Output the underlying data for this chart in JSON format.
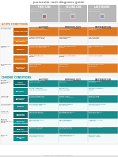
{
  "page_bg": "#f0f0f0",
  "title": "periocular rash diagnosis guide",
  "title_color": "#444444",
  "header_gray": "#b8b8b8",
  "header_labels": [
    "FIRST LINE",
    "SECOND LINE",
    "LAST RESORT"
  ],
  "acute_orange": "#e07820",
  "acute_orange_dark": "#c06010",
  "acute_orange_light": "#f0f0f0",
  "acute_label": "ACUTE CONDITIONS",
  "chronic_teal": "#1a8c8c",
  "chronic_teal_dark": "#0f6b6b",
  "chronic_teal_light": "#e8f4f4",
  "chronic_label": "CHRONIC CONDITIONS",
  "col_headers": [
    "HISTORY",
    "MORPHOLOGY",
    "DISTRIBUTION"
  ],
  "col_header_color": "#555555",
  "left_col_color": "#555555",
  "white": "#ffffff",
  "acute_rows": [
    {
      "cat": "Systemic rash\nor symptoms",
      "label": "Drug reaction",
      "orange": true,
      "h_text": "Sudden onset, diffuse\nerythema, drug exposure",
      "m_text": "Morbilliform eruption\nwith petechiae",
      "d_text": "Diffuse/widespread,\nspares face"
    },
    {
      "cat": "",
      "label": "Contact allergen\nalternative",
      "orange": false,
      "h_text": "Allergen contact hours\nbefore onset, no drug",
      "m_text": "Papules tracking\nconstellation",
      "d_text": "Site of contact,\neyelid margins"
    },
    {
      "cat": "Presence of\nredentity",
      "label": "Psoriasis",
      "orange": true,
      "h_text": "Chronic, waxing and waning\naffects other body sites",
      "m_text": "Scaly, well-demarcated\nplaques",
      "d_text": "Knees, elbows, scalp,\nnails"
    },
    {
      "cat": "",
      "label": "Eczematous",
      "orange": false,
      "h_text": "Atopic background,\npruritus",
      "m_text": "Lichenified, excoriated\nplaques",
      "d_text": "Flexural, periorbital"
    },
    {
      "cat": "Systematically\nresult",
      "label": "Periorbital\ncellulitis",
      "orange": true,
      "h_text": "Fever, unilateral,\nrapid onset",
      "m_text": "Warm, tender,\nerythematous",
      "d_text": "Unilateral periorbital,\nnon-proptotic"
    }
  ],
  "chronic_rows": [
    {
      "cat": "Reduced\npersistence or\nrecurrence\nhistory",
      "label": "Allergic\nconjunctivitis",
      "teal": true,
      "h_text": "Seasonal or perennial,\nsneezing, nasal",
      "m_text": "Chemosis, papillae,\nhyperemia",
      "d_text": "Bilateral, palpebral\nconjunctiva"
    },
    {
      "cat": "",
      "label": "Blepharitis",
      "teal": false,
      "h_text": "Can be triggered by\nchange in soap/shampoo",
      "m_text": "Erythematous\neyelid margins",
      "d_text": "Bilateral, lid margins,\ncanthus"
    },
    {
      "cat": "Teary eyes\nor tearing",
      "label": "Seborrhoeic\nblepharitis",
      "teal": true,
      "h_text": "Dandruff, seborrhoeic\ndermatitis elsewhere",
      "m_text": "Greasy scales,\ncollettes, madarosis",
      "d_text": "Lash line, brow,\nnasolabial fold"
    },
    {
      "cat": "Itchy periorbital\nor perinasal",
      "label": "Rosacea",
      "teal": false,
      "h_text": "Flushing, sun sensitivity,\nrhinophyma, acne",
      "m_text": "Erythema, papules,\ntelangiectasia",
      "d_text": "Cheeks, nose, forehead,\nchin, periorbital"
    },
    {
      "cat": "History of\nsteroid use",
      "label": "Periorbital\ndermatitis",
      "teal": true,
      "h_text": "Steroid use, topical\ncalcineurin inhibitors",
      "m_text": "Micropapules, perioral\ndermatitis similar",
      "d_text": "Periorbital, sparing\nof lip vermilion"
    },
    {
      "cat": "Hyperpig-\nmentation\nthe distribution\nfinding",
      "label": "Periorbital\nhyperpigmentation",
      "teal": false,
      "h_text": "Periorbital darkening,\nfamily history",
      "m_text": "Hyperpigmentation,\nno inflammation",
      "d_text": "Infraorbital hollows,\nlower lids"
    },
    {
      "cat": "",
      "label": "Idiopathic\nhyperpigmentation",
      "teal": true,
      "h_text": "Idiopathic, rule out\nunderlying causes",
      "m_text": "Diffuse periorbital\nhyperpigmentation",
      "d_text": "Periorbital, bilateral"
    },
    {
      "cat": "Periorbital\nderm",
      "label": "Periorbital\nrash",
      "teal": false,
      "h_text": "Observe distribution\nof symptoms closely",
      "m_text": "Variable morphology,\nrash presentation",
      "d_text": "Periorbital, may\nextend to cheeks"
    }
  ]
}
